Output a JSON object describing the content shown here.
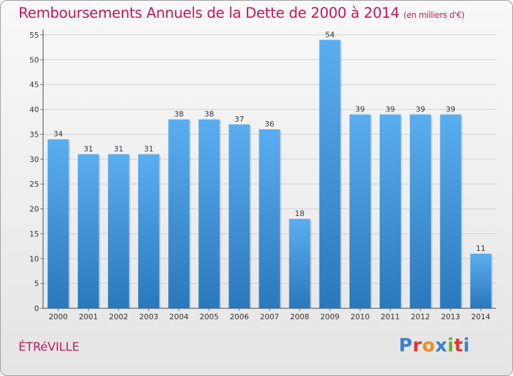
{
  "header": {
    "title": "Remboursements Annuels de la Dette de 2000 à 2014",
    "unit": "(en milliers d'€)"
  },
  "footer": {
    "commune": "ÉTRéVILLE",
    "brand": "Proxiti",
    "brand_colors": [
      "#3a7fd0",
      "#e8322f",
      "#f08c1c",
      "#3a7fd0",
      "#6ab023",
      "#e8322f",
      "#3a7fd0"
    ]
  },
  "colors": {
    "bar_top": "#5aaef0",
    "bar_bottom": "#2a78bc",
    "title": "#c2185b",
    "grid": "#cfcfcf"
  },
  "chart_data": {
    "type": "bar",
    "title": "Remboursements Annuels de la Dette de 2000 à 2014",
    "subtitle": "(en milliers d'€)",
    "categories": [
      "2000",
      "2001",
      "2002",
      "2003",
      "2004",
      "2005",
      "2006",
      "2007",
      "2008",
      "2009",
      "2010",
      "2011",
      "2012",
      "2013",
      "2014"
    ],
    "values": [
      34,
      31,
      31,
      31,
      38,
      38,
      37,
      36,
      18,
      54,
      39,
      39,
      39,
      39,
      11
    ],
    "ylim": [
      0,
      55
    ],
    "yticks": [
      0,
      5,
      10,
      15,
      20,
      25,
      30,
      35,
      40,
      45,
      50,
      55
    ],
    "grid": true,
    "data_labels": true
  }
}
